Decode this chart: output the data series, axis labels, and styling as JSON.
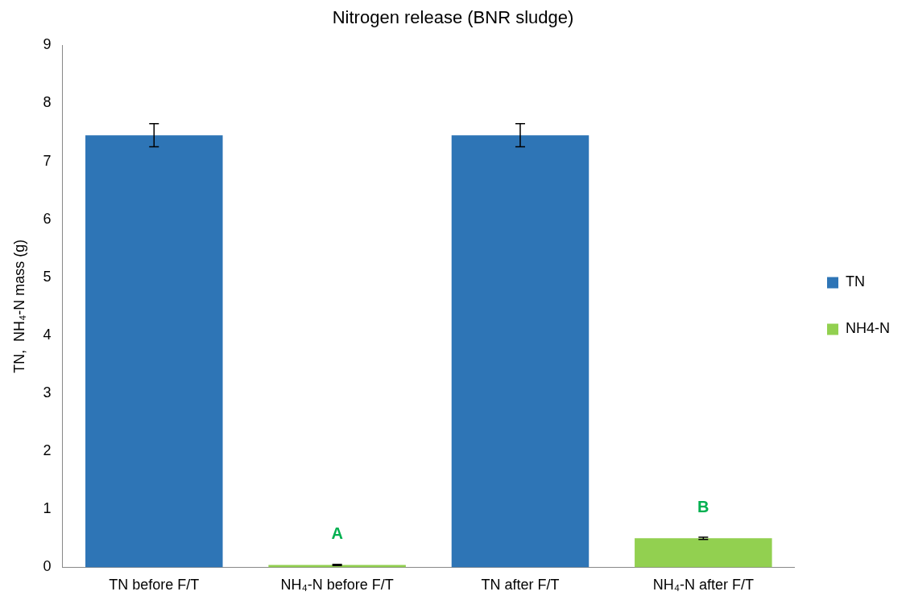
{
  "chart_data": {
    "type": "bar",
    "title": "Nitrogen release (BNR sludge)",
    "ylabel": "TN,  NH₄-N mass (g)",
    "categories": [
      "TN before F/T",
      "NH₄-N before F/T",
      "TN after F/T",
      "NH₄-N after F/T"
    ],
    "series": [
      {
        "name": "TN",
        "color": "#2e75b6",
        "values": [
          7.45,
          null,
          7.45,
          null
        ],
        "errors": [
          0.2,
          null,
          0.2,
          null
        ]
      },
      {
        "name": "NH4-N",
        "color": "#92d050",
        "values": [
          null,
          0.04,
          null,
          0.5
        ],
        "errors": [
          null,
          0.01,
          null,
          0.02
        ]
      }
    ],
    "ylim": [
      0,
      9
    ],
    "yticks": [
      0,
      1,
      2,
      3,
      4,
      5,
      6,
      7,
      8,
      9
    ],
    "grid": false,
    "legend": "right",
    "annotations": [
      "A",
      "B"
    ]
  }
}
